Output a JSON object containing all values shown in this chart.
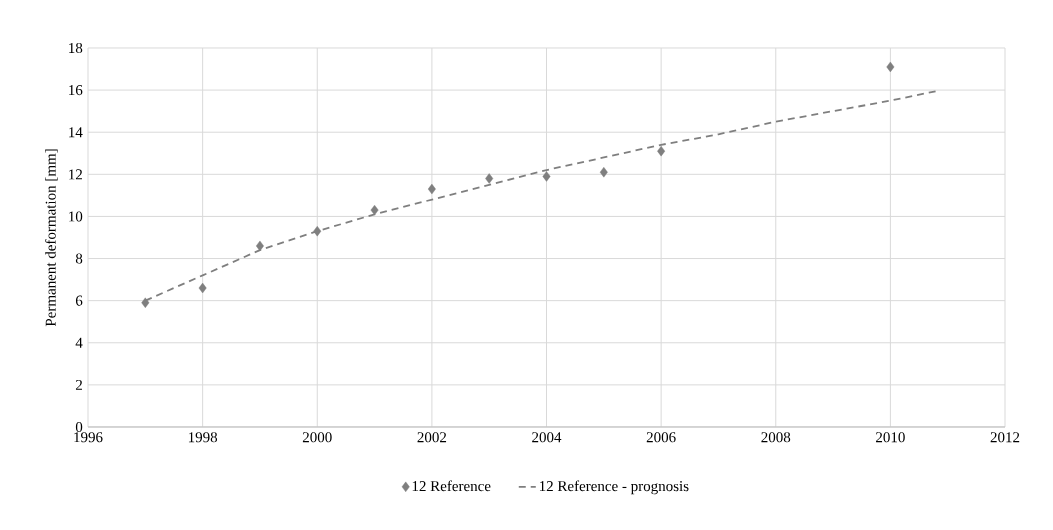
{
  "chart_data": {
    "type": "scatter",
    "ylabel": "Permanent deformation [mm]",
    "x": [
      1997,
      1998,
      1999,
      2000,
      2001,
      2002,
      2003,
      2004,
      2005,
      2006,
      2010
    ],
    "series": [
      {
        "name": "12 Reference",
        "color": "#7f7f7f",
        "marker": "diamond",
        "values": [
          5.9,
          6.6,
          8.6,
          9.3,
          10.3,
          11.3,
          11.8,
          11.9,
          12.1,
          13.1,
          17.1
        ]
      },
      {
        "name": "12 Reference - prognosis",
        "type": "line",
        "color": "#7f7f7f",
        "marker": "none",
        "line_style": "dashed",
        "x": [
          1997,
          1998,
          1999,
          2000,
          2001,
          2002,
          2003,
          2004,
          2005,
          2006,
          2007,
          2008,
          2009,
          2010,
          2010.8
        ],
        "values": [
          6.0,
          7.2,
          8.4,
          9.3,
          10.1,
          10.8,
          11.5,
          12.2,
          12.8,
          13.4,
          13.9,
          14.5,
          15.0,
          15.5,
          15.95
        ]
      }
    ],
    "xlim": [
      1996,
      2012
    ],
    "xticks": [
      1996,
      1998,
      2000,
      2002,
      2004,
      2006,
      2008,
      2010,
      2012
    ],
    "ylim": [
      0,
      18
    ],
    "yticks": [
      0,
      2,
      4,
      6,
      8,
      10,
      12,
      14,
      16,
      18
    ],
    "grid": true,
    "legend": "bottom"
  }
}
